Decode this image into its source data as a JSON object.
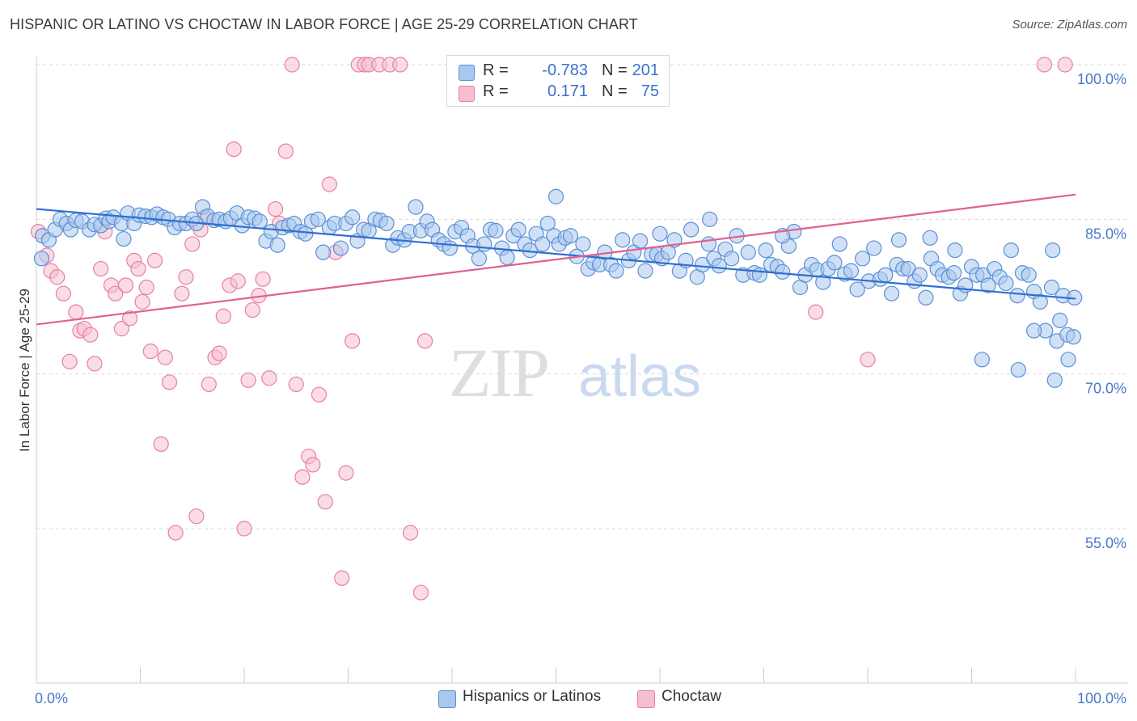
{
  "title": "HISPANIC OR LATINO VS CHOCTAW IN LABOR FORCE | AGE 25-29 CORRELATION CHART",
  "source": "Source: ZipAtlas.com",
  "watermark": {
    "zip": "ZIP",
    "atlas": "atlas"
  },
  "colors": {
    "blue_fill": "#a9c8ef",
    "blue_stroke": "#5b8fd6",
    "blue_line": "#2f6fd2",
    "pink_fill": "#f5bfd0",
    "pink_stroke": "#e77fa3",
    "pink_line": "#e0608e",
    "grid": "#d9d9d9",
    "tick_text": "#4a78c8"
  },
  "legend_top": [
    {
      "r_label": "R =",
      "r_value": "-0.783",
      "n_label": "N =",
      "n_value": "201",
      "swatch": "blue"
    },
    {
      "r_label": "R =",
      "r_value": "0.171",
      "n_label": "N =",
      "n_value": "75",
      "swatch": "pink"
    }
  ],
  "legend_bottom": [
    {
      "label": "Hispanics or Latinos",
      "swatch": "blue"
    },
    {
      "label": "Choctaw",
      "swatch": "pink"
    }
  ],
  "chart_data": {
    "type": "scatter",
    "title": "HISPANIC OR LATINO VS CHOCTAW IN LABOR FORCE | AGE 25-29 CORRELATION CHART",
    "xlabel": "",
    "ylabel": "In Labor Force | Age 25-29",
    "xlim": [
      0,
      100
    ],
    "ylim": [
      40,
      101.5
    ],
    "x_tick_labels": [
      "0.0%",
      "100.0%"
    ],
    "y_ticks": [
      55,
      70,
      85,
      100
    ],
    "y_tick_labels": [
      "55.0%",
      "70.0%",
      "85.0%",
      "100.0%"
    ],
    "grid": "horizontal dashed",
    "legend_placement": "top-center and bottom",
    "series": [
      {
        "name": "Hispanics or Latinos",
        "color": "#5b8fd6",
        "trend": {
          "x": [
            0,
            100
          ],
          "y": [
            86.0,
            77.3
          ]
        },
        "points": [
          [
            0.5,
            81.2
          ],
          [
            0.6,
            83.4
          ],
          [
            1.2,
            83.0
          ],
          [
            1.8,
            84.0
          ],
          [
            2.3,
            85.0
          ],
          [
            2.9,
            84.6
          ],
          [
            3.3,
            84.0
          ],
          [
            3.8,
            84.9
          ],
          [
            4.4,
            84.8
          ],
          [
            5.1,
            84.0
          ],
          [
            5.6,
            84.5
          ],
          [
            6.2,
            84.4
          ],
          [
            6.7,
            85.1
          ],
          [
            7.0,
            84.8
          ],
          [
            7.4,
            85.2
          ],
          [
            8.2,
            84.6
          ],
          [
            8.4,
            83.1
          ],
          [
            8.8,
            85.6
          ],
          [
            9.4,
            84.6
          ],
          [
            9.9,
            85.4
          ],
          [
            10.5,
            85.3
          ],
          [
            11.1,
            85.2
          ],
          [
            11.6,
            85.5
          ],
          [
            12.2,
            85.2
          ],
          [
            12.7,
            85.0
          ],
          [
            13.3,
            84.2
          ],
          [
            13.8,
            84.6
          ],
          [
            14.4,
            84.6
          ],
          [
            15.0,
            85.0
          ],
          [
            15.4,
            84.6
          ],
          [
            16.0,
            86.2
          ],
          [
            16.5,
            85.3
          ],
          [
            17.1,
            84.9
          ],
          [
            17.6,
            85.0
          ],
          [
            18.2,
            84.8
          ],
          [
            18.7,
            85.1
          ],
          [
            19.3,
            85.6
          ],
          [
            19.8,
            84.4
          ],
          [
            20.4,
            85.2
          ],
          [
            21.0,
            85.1
          ],
          [
            21.5,
            84.8
          ],
          [
            22.1,
            82.9
          ],
          [
            22.6,
            83.8
          ],
          [
            23.2,
            82.5
          ],
          [
            23.7,
            84.2
          ],
          [
            24.3,
            84.4
          ],
          [
            24.8,
            84.6
          ],
          [
            25.4,
            83.8
          ],
          [
            25.9,
            83.6
          ],
          [
            26.5,
            84.8
          ],
          [
            27.1,
            85.0
          ],
          [
            27.6,
            81.8
          ],
          [
            28.2,
            84.2
          ],
          [
            28.7,
            84.6
          ],
          [
            29.3,
            82.2
          ],
          [
            29.8,
            84.6
          ],
          [
            30.4,
            85.2
          ],
          [
            30.9,
            82.9
          ],
          [
            31.5,
            84.0
          ],
          [
            32.0,
            83.9
          ],
          [
            32.6,
            85.0
          ],
          [
            33.1,
            84.9
          ],
          [
            33.7,
            84.6
          ],
          [
            34.3,
            82.5
          ],
          [
            34.8,
            83.2
          ],
          [
            35.4,
            83.0
          ],
          [
            35.9,
            83.8
          ],
          [
            36.5,
            86.2
          ],
          [
            37.0,
            83.9
          ],
          [
            37.6,
            84.8
          ],
          [
            38.1,
            84.0
          ],
          [
            38.7,
            83.0
          ],
          [
            39.2,
            82.6
          ],
          [
            39.8,
            82.2
          ],
          [
            40.3,
            83.8
          ],
          [
            40.9,
            84.2
          ],
          [
            41.5,
            83.4
          ],
          [
            42.0,
            82.4
          ],
          [
            42.6,
            81.2
          ],
          [
            43.1,
            82.6
          ],
          [
            43.7,
            84.0
          ],
          [
            44.2,
            83.9
          ],
          [
            44.8,
            82.2
          ],
          [
            45.3,
            81.3
          ],
          [
            45.9,
            83.4
          ],
          [
            46.4,
            84.0
          ],
          [
            47.0,
            82.6
          ],
          [
            47.5,
            82.0
          ],
          [
            48.1,
            83.6
          ],
          [
            48.7,
            82.6
          ],
          [
            49.2,
            84.6
          ],
          [
            49.8,
            83.4
          ],
          [
            50.3,
            82.6
          ],
          [
            50.9,
            83.2
          ],
          [
            51.4,
            83.4
          ],
          [
            52.0,
            81.4
          ],
          [
            52.6,
            82.6
          ],
          [
            53.1,
            80.2
          ],
          [
            53.6,
            80.8
          ],
          [
            54.2,
            80.6
          ],
          [
            54.7,
            81.8
          ],
          [
            55.3,
            80.6
          ],
          [
            55.8,
            80.0
          ],
          [
            56.4,
            83.0
          ],
          [
            57.0,
            81.0
          ],
          [
            57.5,
            81.8
          ],
          [
            58.1,
            82.9
          ],
          [
            58.6,
            80.0
          ],
          [
            59.2,
            81.6
          ],
          [
            59.7,
            81.6
          ],
          [
            60.2,
            81.2
          ],
          [
            60.8,
            81.8
          ],
          [
            61.4,
            83.0
          ],
          [
            61.9,
            80.0
          ],
          [
            62.5,
            81.0
          ],
          [
            63.0,
            84.0
          ],
          [
            63.6,
            79.4
          ],
          [
            64.1,
            80.6
          ],
          [
            64.7,
            82.6
          ],
          [
            65.2,
            81.2
          ],
          [
            65.7,
            80.5
          ],
          [
            66.3,
            82.1
          ],
          [
            66.9,
            81.2
          ],
          [
            67.4,
            83.4
          ],
          [
            68.0,
            79.6
          ],
          [
            68.5,
            81.8
          ],
          [
            69.1,
            79.8
          ],
          [
            69.6,
            79.6
          ],
          [
            70.2,
            82.0
          ],
          [
            70.7,
            80.6
          ],
          [
            71.3,
            80.4
          ],
          [
            71.8,
            79.9
          ],
          [
            72.4,
            82.4
          ],
          [
            72.9,
            83.8
          ],
          [
            73.5,
            78.4
          ],
          [
            74.0,
            79.6
          ],
          [
            74.6,
            80.6
          ],
          [
            75.1,
            80.1
          ],
          [
            75.7,
            78.9
          ],
          [
            76.2,
            80.2
          ],
          [
            76.8,
            80.8
          ],
          [
            77.3,
            82.6
          ],
          [
            77.8,
            79.7
          ],
          [
            78.4,
            80.0
          ],
          [
            79.0,
            78.2
          ],
          [
            79.5,
            81.2
          ],
          [
            80.1,
            79.0
          ],
          [
            80.6,
            82.2
          ],
          [
            81.2,
            79.2
          ],
          [
            81.7,
            79.6
          ],
          [
            82.3,
            77.8
          ],
          [
            82.8,
            80.6
          ],
          [
            83.4,
            80.2
          ],
          [
            83.9,
            80.2
          ],
          [
            84.5,
            79.0
          ],
          [
            85.0,
            79.6
          ],
          [
            85.6,
            77.4
          ],
          [
            86.1,
            81.2
          ],
          [
            86.7,
            80.2
          ],
          [
            87.2,
            79.6
          ],
          [
            87.8,
            79.4
          ],
          [
            88.3,
            79.8
          ],
          [
            88.9,
            77.8
          ],
          [
            89.4,
            78.6
          ],
          [
            90.0,
            80.4
          ],
          [
            90.5,
            79.6
          ],
          [
            91.1,
            79.6
          ],
          [
            91.6,
            78.6
          ],
          [
            92.2,
            80.2
          ],
          [
            92.7,
            79.4
          ],
          [
            93.3,
            78.8
          ],
          [
            93.8,
            82.0
          ],
          [
            94.4,
            77.6
          ],
          [
            94.9,
            79.8
          ],
          [
            95.5,
            79.6
          ],
          [
            96.0,
            78.0
          ],
          [
            96.6,
            77.0
          ],
          [
            97.1,
            74.2
          ],
          [
            97.7,
            78.4
          ],
          [
            98.2,
            73.2
          ],
          [
            98.8,
            77.6
          ],
          [
            99.3,
            71.4
          ],
          [
            99.9,
            77.4
          ],
          [
            94.5,
            70.4
          ],
          [
            91.0,
            71.4
          ],
          [
            96.0,
            74.2
          ],
          [
            98.0,
            69.4
          ],
          [
            98.5,
            75.2
          ],
          [
            99.2,
            73.8
          ],
          [
            99.8,
            73.6
          ],
          [
            50.0,
            87.2
          ],
          [
            64.8,
            85.0
          ],
          [
            83.0,
            83.0
          ],
          [
            71.8,
            83.4
          ],
          [
            60.0,
            83.6
          ],
          [
            97.8,
            82.0
          ],
          [
            88.4,
            82.0
          ],
          [
            86.0,
            83.2
          ]
        ]
      },
      {
        "name": "Choctaw",
        "color": "#e77fa3",
        "trend": {
          "x": [
            0,
            100
          ],
          "y": [
            74.8,
            87.4
          ]
        },
        "points": [
          [
            0.2,
            83.8
          ],
          [
            1.0,
            81.5
          ],
          [
            1.4,
            80.0
          ],
          [
            2.0,
            79.4
          ],
          [
            2.6,
            77.8
          ],
          [
            3.2,
            71.2
          ],
          [
            3.8,
            76.0
          ],
          [
            4.2,
            74.2
          ],
          [
            4.6,
            74.4
          ],
          [
            5.2,
            73.8
          ],
          [
            5.6,
            71.0
          ],
          [
            6.2,
            80.2
          ],
          [
            6.6,
            83.8
          ],
          [
            7.2,
            78.6
          ],
          [
            7.6,
            77.8
          ],
          [
            8.2,
            74.4
          ],
          [
            8.6,
            78.6
          ],
          [
            9.0,
            75.4
          ],
          [
            9.4,
            81.0
          ],
          [
            9.8,
            80.2
          ],
          [
            10.2,
            77.0
          ],
          [
            10.6,
            78.4
          ],
          [
            11.0,
            72.2
          ],
          [
            11.4,
            81.0
          ],
          [
            12.0,
            63.2
          ],
          [
            12.4,
            71.6
          ],
          [
            12.8,
            69.2
          ],
          [
            13.4,
            54.6
          ],
          [
            14.0,
            77.8
          ],
          [
            14.4,
            79.4
          ],
          [
            15.0,
            82.6
          ],
          [
            15.4,
            56.2
          ],
          [
            15.8,
            84.0
          ],
          [
            16.2,
            85.2
          ],
          [
            16.6,
            69.0
          ],
          [
            17.2,
            71.6
          ],
          [
            17.6,
            72.0
          ],
          [
            18.0,
            75.6
          ],
          [
            18.6,
            78.6
          ],
          [
            19.0,
            91.8
          ],
          [
            19.4,
            79.0
          ],
          [
            20.0,
            55.0
          ],
          [
            20.4,
            69.4
          ],
          [
            20.8,
            76.2
          ],
          [
            21.4,
            77.6
          ],
          [
            21.8,
            79.2
          ],
          [
            22.4,
            69.6
          ],
          [
            23.0,
            86.0
          ],
          [
            23.4,
            84.6
          ],
          [
            24.0,
            91.6
          ],
          [
            24.6,
            100.0
          ],
          [
            25.0,
            69.0
          ],
          [
            25.6,
            60.0
          ],
          [
            26.2,
            62.0
          ],
          [
            26.6,
            61.2
          ],
          [
            27.2,
            68.0
          ],
          [
            27.8,
            57.6
          ],
          [
            28.2,
            88.4
          ],
          [
            28.8,
            81.8
          ],
          [
            29.4,
            50.2
          ],
          [
            29.8,
            60.4
          ],
          [
            30.4,
            73.2
          ],
          [
            31.0,
            100.0
          ],
          [
            31.6,
            100.0
          ],
          [
            32.0,
            100.0
          ],
          [
            33.0,
            100.0
          ],
          [
            34.0,
            100.0
          ],
          [
            35.0,
            100.0
          ],
          [
            36.0,
            54.6
          ],
          [
            37.0,
            48.8
          ],
          [
            37.4,
            73.2
          ],
          [
            75.0,
            76.0
          ],
          [
            80.0,
            71.4
          ],
          [
            97.0,
            100.0
          ],
          [
            99.0,
            100.0
          ]
        ]
      }
    ]
  }
}
